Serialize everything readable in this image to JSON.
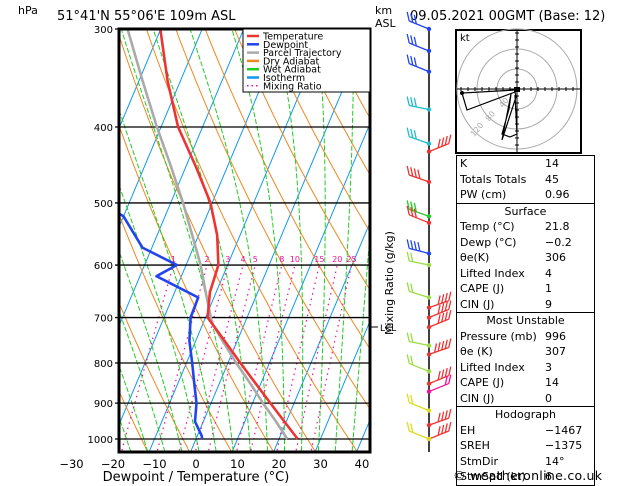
{
  "header": {
    "location": "51°41'N  55°06'E  109m  ASL",
    "datetime": "09.05.2021  00GMT  (Base: 12)",
    "left_unit": "hPa",
    "right_unit_line1": "km",
    "right_unit_line2": "ASL"
  },
  "chart_data": {
    "type": "line",
    "title": "51°41'N 55°06'E 109m ASL",
    "subtitle": "09.05.2021 00GMT (Base: 12)",
    "xlabel": "Dewpoint / Temperature (°C)",
    "ylabel": "hPa",
    "right_axis_label": "Mixing Ratio (g/kg)",
    "xlim": [
      -38,
      42
    ],
    "ylim": [
      1000,
      300
    ],
    "x_ticks": [
      -30,
      -20,
      -10,
      0,
      10,
      20,
      30,
      40
    ],
    "y_ticks": [
      300,
      400,
      500,
      600,
      700,
      800,
      900,
      1000
    ],
    "lcl_label": "LCL",
    "lcl_pressure": 710,
    "legend": {
      "placement": "top-right",
      "entries": [
        {
          "label": "Temperature",
          "color": "#ee3333",
          "style": "solid"
        },
        {
          "label": "Dewpoint",
          "color": "#2244ee",
          "style": "solid"
        },
        {
          "label": "Parcel Trajectory",
          "color": "#aaaaaa",
          "style": "solid"
        },
        {
          "label": "Dry Adiabat",
          "color": "#ee8822",
          "style": "solid"
        },
        {
          "label": "Wet Adiabat",
          "color": "#22cc22",
          "style": "solid"
        },
        {
          "label": "Isotherm",
          "color": "#1199ee",
          "style": "solid"
        },
        {
          "label": "Mixing Ratio",
          "color": "#ee1199",
          "style": "dotted"
        }
      ]
    },
    "mixing_ratio_labels": [
      "1",
      "2",
      "3",
      "4",
      "5",
      "8",
      "10",
      "15",
      "20",
      "25"
    ],
    "mixing_ratio_values": [
      1,
      2,
      3,
      4,
      5,
      8,
      10,
      15,
      20,
      25
    ],
    "series": [
      {
        "name": "Temperature",
        "color": "#ee3333",
        "points": [
          [
            1000,
            24.5
          ],
          [
            950,
            19.5
          ],
          [
            900,
            14.3
          ],
          [
            850,
            8.8
          ],
          [
            800,
            3.0
          ],
          [
            750,
            -3.0
          ],
          [
            700,
            -9.5
          ],
          [
            650,
            -11.5
          ],
          [
            600,
            -12.2
          ],
          [
            550,
            -15.5
          ],
          [
            500,
            -20.4
          ],
          [
            450,
            -27.5
          ],
          [
            400,
            -35.9
          ],
          [
            350,
            -43.0
          ],
          [
            300,
            -50.1
          ]
        ]
      },
      {
        "name": "Dewpoint",
        "color": "#2244ee",
        "points": [
          [
            1000,
            1.5
          ],
          [
            990,
            1.0
          ],
          [
            950,
            -2.0
          ],
          [
            900,
            -3.5
          ],
          [
            850,
            -6.0
          ],
          [
            800,
            -8.6
          ],
          [
            750,
            -11.5
          ],
          [
            700,
            -13.6
          ],
          [
            660,
            -13.8
          ],
          [
            620,
            -26.0
          ],
          [
            600,
            -22.2
          ],
          [
            570,
            -32.3
          ],
          [
            520,
            -40.0
          ],
          [
            500,
            -46.7
          ],
          [
            450,
            -50.5
          ],
          [
            400,
            -54.2
          ],
          [
            350,
            -58.5
          ],
          [
            300,
            -63.1
          ]
        ]
      },
      {
        "name": "Parcel Trajectory",
        "color": "#aaaaaa",
        "points": [
          [
            1000,
            22.0
          ],
          [
            950,
            17.5
          ],
          [
            900,
            12.5
          ],
          [
            850,
            7.5
          ],
          [
            800,
            2.0
          ],
          [
            750,
            -3.5
          ],
          [
            710,
            -8.0
          ],
          [
            650,
            -12.5
          ],
          [
            600,
            -16.5
          ],
          [
            550,
            -21.5
          ],
          [
            500,
            -27.0
          ],
          [
            450,
            -33.5
          ],
          [
            400,
            -41.0
          ],
          [
            350,
            -49.0
          ],
          [
            300,
            -58.0
          ]
        ]
      }
    ]
  },
  "hodograph": {
    "label": "kt",
    "ring_labels": [
      "40",
      "80",
      "120"
    ]
  },
  "stats": {
    "indices": [
      {
        "label": "K",
        "value": "14"
      },
      {
        "label": "Totals Totals",
        "value": "45"
      },
      {
        "label": "PW (cm)",
        "value": "0.96"
      }
    ],
    "surface": {
      "title": "Surface",
      "rows": [
        {
          "label": "Temp (°C)",
          "value": "21.8"
        },
        {
          "label": "Dewp (°C)",
          "value": "−0.2"
        },
        {
          "label": "θe(K)",
          "value": "306"
        },
        {
          "label": "Lifted Index",
          "value": "4"
        },
        {
          "label": "CAPE (J)",
          "value": "1"
        },
        {
          "label": "CIN (J)",
          "value": "9"
        }
      ]
    },
    "most_unstable": {
      "title": "Most Unstable",
      "rows": [
        {
          "label": "Pressure (mb)",
          "value": "996"
        },
        {
          "label": "θe (K)",
          "value": "307"
        },
        {
          "label": "Lifted Index",
          "value": "3"
        },
        {
          "label": "CAPE (J)",
          "value": "14"
        },
        {
          "label": "CIN (J)",
          "value": "0"
        }
      ]
    },
    "hodograph": {
      "title": "Hodograph",
      "rows": [
        {
          "label": "EH",
          "value": "−1467"
        },
        {
          "label": "SREH",
          "value": "−1375"
        },
        {
          "label": "StmDir",
          "value": "14°"
        },
        {
          "label": "StmSpd (kt)",
          "value": "6"
        }
      ]
    }
  },
  "footer": "© weatheronline.co.uk"
}
